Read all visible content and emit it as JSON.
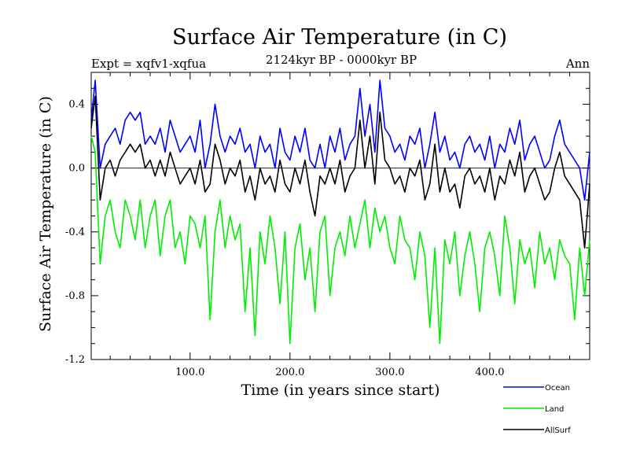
{
  "chart_data": {
    "type": "line",
    "title": "Surface Air Temperature (in C)",
    "subtitle": "2124kyr BP - 0000kyr BP",
    "expt_label": "Expt = xqfv1-xqfua",
    "season_label": "Ann",
    "xlabel": "Time (in years since start)",
    "ylabel": "Surface Air Temperature (in C)",
    "xlim": [
      1,
      500
    ],
    "ylim": [
      -1.2,
      0.6
    ],
    "x_ticks": [
      100,
      200,
      300,
      400
    ],
    "x_tick_labels": [
      "100.0",
      "200.0",
      "300.0",
      "400.0"
    ],
    "y_ticks": [
      -1.2,
      -0.8,
      -0.4,
      0.0,
      0.4
    ],
    "y_tick_labels": [
      "-1.2",
      "-0.8",
      "-0.4",
      "0.0",
      "0.4"
    ],
    "zero_line": true,
    "legend_position": "bottom-right",
    "series": [
      {
        "name": "Ocean",
        "color": "#0000ff",
        "x": [
          1,
          5,
          10,
          15,
          20,
          25,
          30,
          35,
          40,
          45,
          50,
          55,
          60,
          65,
          70,
          75,
          80,
          85,
          90,
          95,
          100,
          105,
          110,
          115,
          120,
          125,
          130,
          135,
          140,
          145,
          150,
          155,
          160,
          165,
          170,
          175,
          180,
          185,
          190,
          195,
          200,
          205,
          210,
          215,
          220,
          225,
          230,
          235,
          240,
          245,
          250,
          255,
          260,
          265,
          270,
          275,
          280,
          285,
          290,
          295,
          300,
          305,
          310,
          315,
          320,
          325,
          330,
          335,
          340,
          345,
          350,
          355,
          360,
          365,
          370,
          375,
          380,
          385,
          390,
          395,
          400,
          405,
          410,
          415,
          420,
          425,
          430,
          435,
          440,
          445,
          450,
          455,
          460,
          465,
          470,
          475,
          480,
          485,
          490,
          495,
          500
        ],
        "values": [
          0.3,
          0.55,
          0.0,
          0.15,
          0.2,
          0.25,
          0.15,
          0.3,
          0.35,
          0.3,
          0.35,
          0.15,
          0.2,
          0.15,
          0.25,
          0.1,
          0.3,
          0.2,
          0.1,
          0.15,
          0.2,
          0.1,
          0.3,
          0.0,
          0.15,
          0.4,
          0.2,
          0.1,
          0.2,
          0.15,
          0.25,
          0.1,
          0.15,
          0.0,
          0.2,
          0.1,
          0.15,
          0.0,
          0.25,
          0.1,
          0.05,
          0.2,
          0.1,
          0.25,
          0.05,
          0.0,
          0.15,
          0.0,
          0.2,
          0.1,
          0.25,
          0.05,
          0.15,
          0.2,
          0.5,
          0.2,
          0.4,
          0.1,
          0.55,
          0.25,
          0.2,
          0.1,
          0.15,
          0.05,
          0.2,
          0.15,
          0.25,
          0.0,
          0.15,
          0.35,
          0.1,
          0.2,
          0.05,
          0.1,
          0.0,
          0.15,
          0.2,
          0.1,
          0.15,
          0.05,
          0.2,
          0.0,
          0.15,
          0.1,
          0.25,
          0.15,
          0.3,
          0.05,
          0.15,
          0.2,
          0.1,
          0.0,
          0.05,
          0.2,
          0.3,
          0.15,
          0.1,
          0.05,
          0.0,
          -0.2,
          0.1
        ]
      },
      {
        "name": "Land",
        "color": "#00ee00",
        "x": [
          1,
          5,
          10,
          15,
          20,
          25,
          30,
          35,
          40,
          45,
          50,
          55,
          60,
          65,
          70,
          75,
          80,
          85,
          90,
          95,
          100,
          105,
          110,
          115,
          120,
          125,
          130,
          135,
          140,
          145,
          150,
          155,
          160,
          165,
          170,
          175,
          180,
          185,
          190,
          195,
          200,
          205,
          210,
          215,
          220,
          225,
          230,
          235,
          240,
          245,
          250,
          255,
          260,
          265,
          270,
          275,
          280,
          285,
          290,
          295,
          300,
          305,
          310,
          315,
          320,
          325,
          330,
          335,
          340,
          345,
          350,
          355,
          360,
          365,
          370,
          375,
          380,
          385,
          390,
          395,
          400,
          405,
          410,
          415,
          420,
          425,
          430,
          435,
          440,
          445,
          450,
          455,
          460,
          465,
          470,
          475,
          480,
          485,
          490,
          495,
          500
        ],
        "values": [
          0.2,
          0.1,
          -0.6,
          -0.3,
          -0.2,
          -0.4,
          -0.5,
          -0.2,
          -0.3,
          -0.45,
          -0.2,
          -0.5,
          -0.3,
          -0.2,
          -0.55,
          -0.3,
          -0.2,
          -0.5,
          -0.4,
          -0.6,
          -0.3,
          -0.35,
          -0.5,
          -0.3,
          -0.95,
          -0.4,
          -0.2,
          -0.5,
          -0.3,
          -0.45,
          -0.35,
          -0.9,
          -0.5,
          -1.05,
          -0.4,
          -0.6,
          -0.3,
          -0.5,
          -0.85,
          -0.4,
          -1.1,
          -0.5,
          -0.35,
          -0.7,
          -0.5,
          -0.9,
          -0.4,
          -0.3,
          -0.8,
          -0.5,
          -0.4,
          -0.55,
          -0.3,
          -0.5,
          -0.35,
          -0.2,
          -0.5,
          -0.25,
          -0.4,
          -0.3,
          -0.5,
          -0.6,
          -0.3,
          -0.45,
          -0.5,
          -0.7,
          -0.4,
          -0.55,
          -1.0,
          -0.5,
          -1.1,
          -0.45,
          -0.6,
          -0.4,
          -0.8,
          -0.55,
          -0.4,
          -0.6,
          -0.9,
          -0.5,
          -0.4,
          -0.55,
          -0.8,
          -0.3,
          -0.5,
          -0.85,
          -0.45,
          -0.6,
          -0.5,
          -0.75,
          -0.4,
          -0.6,
          -0.5,
          -0.7,
          -0.45,
          -0.55,
          -0.6,
          -0.95,
          -0.5,
          -0.8,
          -0.45
        ]
      },
      {
        "name": "AllSurf",
        "color": "#000000",
        "x": [
          1,
          5,
          10,
          15,
          20,
          25,
          30,
          35,
          40,
          45,
          50,
          55,
          60,
          65,
          70,
          75,
          80,
          85,
          90,
          95,
          100,
          105,
          110,
          115,
          120,
          125,
          130,
          135,
          140,
          145,
          150,
          155,
          160,
          165,
          170,
          175,
          180,
          185,
          190,
          195,
          200,
          205,
          210,
          215,
          220,
          225,
          230,
          235,
          240,
          245,
          250,
          255,
          260,
          265,
          270,
          275,
          280,
          285,
          290,
          295,
          300,
          305,
          310,
          315,
          320,
          325,
          330,
          335,
          340,
          345,
          350,
          355,
          360,
          365,
          370,
          375,
          380,
          385,
          390,
          395,
          400,
          405,
          410,
          415,
          420,
          425,
          430,
          435,
          440,
          445,
          450,
          455,
          460,
          465,
          470,
          475,
          480,
          485,
          490,
          495,
          500
        ],
        "values": [
          0.25,
          0.45,
          -0.2,
          0.0,
          0.05,
          -0.05,
          0.05,
          0.1,
          0.15,
          0.1,
          0.15,
          0.0,
          0.05,
          -0.05,
          0.05,
          -0.05,
          0.1,
          0.0,
          -0.1,
          -0.05,
          0.0,
          -0.1,
          0.05,
          -0.15,
          -0.1,
          0.15,
          0.05,
          -0.1,
          0.0,
          -0.05,
          0.05,
          -0.15,
          -0.05,
          -0.2,
          0.0,
          -0.1,
          -0.05,
          -0.15,
          0.05,
          -0.1,
          -0.15,
          0.0,
          -0.1,
          0.05,
          -0.15,
          -0.3,
          -0.05,
          -0.1,
          0.0,
          -0.1,
          0.05,
          -0.15,
          -0.05,
          0.0,
          0.3,
          0.0,
          0.2,
          -0.1,
          0.35,
          0.05,
          0.0,
          -0.1,
          -0.05,
          -0.15,
          0.0,
          -0.05,
          0.05,
          -0.2,
          -0.1,
          0.15,
          -0.15,
          0.0,
          -0.15,
          -0.1,
          -0.25,
          -0.05,
          0.0,
          -0.1,
          -0.05,
          -0.15,
          0.0,
          -0.2,
          -0.05,
          -0.1,
          0.05,
          -0.05,
          0.1,
          -0.15,
          -0.05,
          0.0,
          -0.1,
          -0.2,
          -0.15,
          0.0,
          0.1,
          -0.05,
          -0.1,
          -0.15,
          -0.2,
          -0.5,
          -0.1
        ]
      }
    ]
  }
}
